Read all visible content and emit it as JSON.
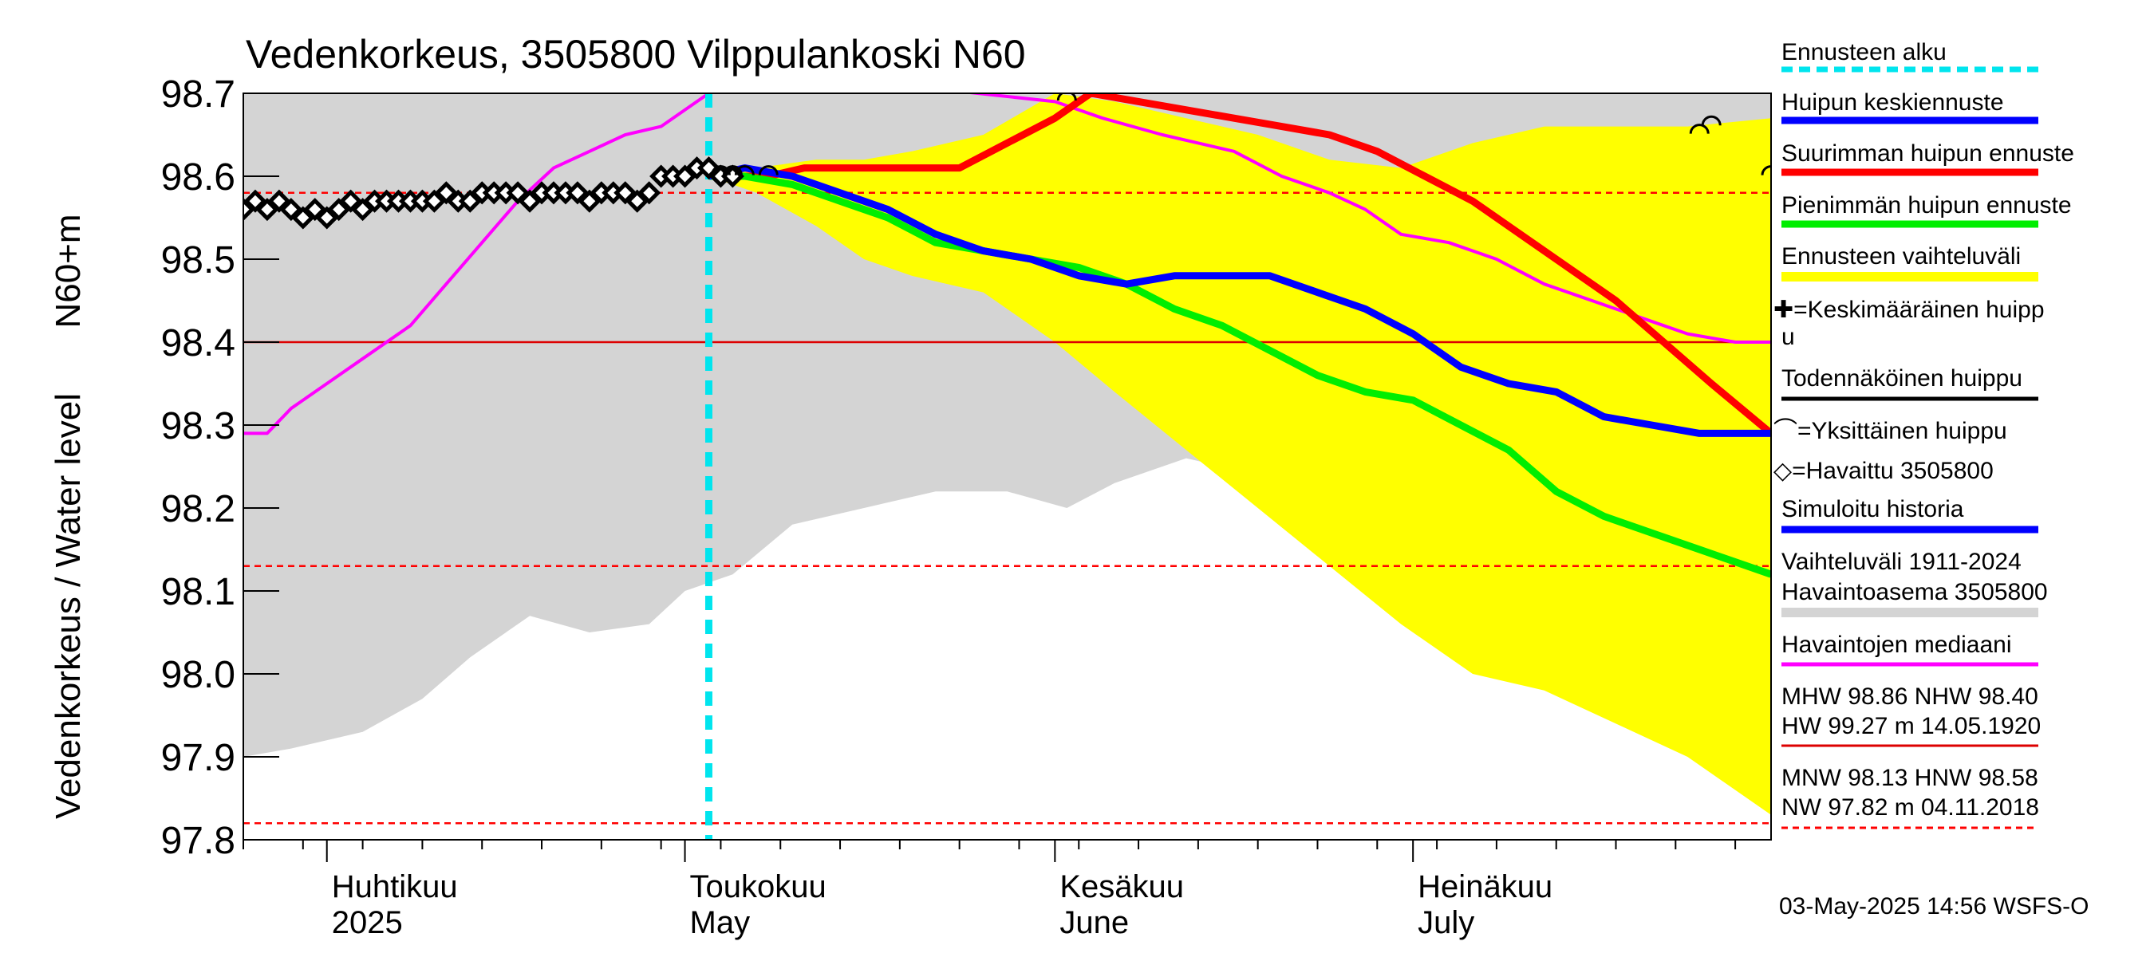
{
  "chart_data": {
    "type": "line",
    "title": "Vedenkorkeus, 3505800 Vilppulankoski N60",
    "ylabel_top": "N60+m",
    "ylabel": "Vedenkorkeus / Water level",
    "ylim": [
      97.8,
      98.7
    ],
    "y_ticks": [
      "97.8",
      "97.9",
      "98.0",
      "98.1",
      "98.2",
      "98.3",
      "98.4",
      "98.5",
      "98.6",
      "98.7"
    ],
    "x_range": [
      "2025-03-25",
      "2025-07-31"
    ],
    "month_labels": [
      {
        "fi": "Huhtikuu",
        "en": "2025",
        "date": "2025-04-01"
      },
      {
        "fi": "Toukokuu",
        "en": "May",
        "date": "2025-05-01"
      },
      {
        "fi": "Kesäkuu",
        "en": "June",
        "date": "2025-06-01"
      },
      {
        "fi": "Heinäkuu",
        "en": "July",
        "date": "2025-07-01"
      }
    ],
    "forecast_start": "2025-05-03",
    "reference_lines": [
      {
        "name": "MHW",
        "value": 98.86,
        "color": "#ff0000",
        "style": "dashed"
      },
      {
        "name": "NHW",
        "value": 98.4,
        "color": "#dd0000",
        "style": "solid"
      },
      {
        "name": "HNW",
        "value": 98.58,
        "color": "#ff0000",
        "style": "dashed"
      },
      {
        "name": "MNW",
        "value": 98.13,
        "color": "#ff0000",
        "style": "dashed"
      },
      {
        "name": "NW",
        "value": 97.82,
        "color": "#ff0000",
        "style": "dashed"
      }
    ],
    "historical_range": {
      "name": "Vaihteluväli 1911-2024 Havaintoasema 3505800",
      "color": "#d4d4d4",
      "x": [
        "2025-03-25",
        "2025-03-29",
        "2025-04-04",
        "2025-04-09",
        "2025-04-13",
        "2025-04-18",
        "2025-04-23",
        "2025-04-28",
        "2025-05-01",
        "2025-05-05",
        "2025-05-10",
        "2025-05-16",
        "2025-05-22",
        "2025-05-28",
        "2025-06-02",
        "2025-06-06",
        "2025-06-12",
        "2025-06-18",
        "2025-06-22",
        "2025-06-26",
        "2025-06-29",
        "2025-07-03",
        "2025-07-08",
        "2025-07-14",
        "2025-07-20",
        "2025-07-26",
        "2025-07-31"
      ],
      "upper": [
        98.7,
        98.7,
        98.7,
        98.7,
        98.7,
        98.7,
        98.7,
        98.7,
        98.7,
        98.7,
        98.7,
        98.7,
        98.7,
        98.7,
        98.7,
        98.7,
        98.7,
        98.7,
        98.7,
        98.7,
        98.7,
        98.7,
        98.7,
        98.7,
        98.7,
        98.7,
        98.7
      ],
      "lower": [
        97.9,
        97.91,
        97.93,
        97.97,
        98.02,
        98.07,
        98.05,
        98.06,
        98.1,
        98.12,
        98.18,
        98.2,
        98.22,
        98.22,
        98.2,
        98.23,
        98.26,
        98.24,
        98.2,
        98.12,
        98.14,
        98.19,
        98.18,
        98.15,
        98.14,
        98.12,
        98.1
      ]
    },
    "forecast_range": {
      "name": "Ennusteen vaihteluväli",
      "color": "#ffff00",
      "x": [
        "2025-05-03",
        "2025-05-07",
        "2025-05-12",
        "2025-05-16",
        "2025-05-20",
        "2025-05-26",
        "2025-06-01",
        "2025-06-06",
        "2025-06-12",
        "2025-06-18",
        "2025-06-24",
        "2025-06-30",
        "2025-07-06",
        "2025-07-12",
        "2025-07-18",
        "2025-07-24",
        "2025-07-31"
      ],
      "upper": [
        98.6,
        98.61,
        98.62,
        98.62,
        98.63,
        98.65,
        98.7,
        98.69,
        98.67,
        98.65,
        98.62,
        98.61,
        98.64,
        98.66,
        98.66,
        98.66,
        98.67
      ],
      "lower": [
        98.6,
        98.58,
        98.54,
        98.5,
        98.48,
        98.46,
        98.4,
        98.34,
        98.27,
        98.2,
        98.13,
        98.06,
        98.0,
        97.98,
        97.94,
        97.9,
        97.83
      ]
    },
    "series": [
      {
        "name": "Havaittu 3505800",
        "color": "#000000",
        "marker": "diamond",
        "x": [
          "2025-03-25",
          "2025-03-26",
          "2025-03-27",
          "2025-03-28",
          "2025-03-29",
          "2025-03-30",
          "2025-03-31",
          "2025-04-01",
          "2025-04-02",
          "2025-04-03",
          "2025-04-04",
          "2025-04-05",
          "2025-04-06",
          "2025-04-07",
          "2025-04-08",
          "2025-04-09",
          "2025-04-10",
          "2025-04-11",
          "2025-04-12",
          "2025-04-13",
          "2025-04-14",
          "2025-04-15",
          "2025-04-16",
          "2025-04-17",
          "2025-04-18",
          "2025-04-19",
          "2025-04-20",
          "2025-04-21",
          "2025-04-22",
          "2025-04-23",
          "2025-04-24",
          "2025-04-25",
          "2025-04-26",
          "2025-04-27",
          "2025-04-28",
          "2025-04-29",
          "2025-04-30",
          "2025-05-01",
          "2025-05-02",
          "2025-05-03",
          "2025-05-04",
          "2025-05-05"
        ],
        "y": [
          98.56,
          98.57,
          98.56,
          98.57,
          98.56,
          98.55,
          98.56,
          98.55,
          98.56,
          98.57,
          98.56,
          98.57,
          98.57,
          98.57,
          98.57,
          98.57,
          98.57,
          98.58,
          98.57,
          98.57,
          98.58,
          98.58,
          98.58,
          98.58,
          98.57,
          98.58,
          98.58,
          98.58,
          98.58,
          98.57,
          98.58,
          98.58,
          98.58,
          98.57,
          98.58,
          98.6,
          98.6,
          98.6,
          98.61,
          98.61,
          98.6,
          98.6
        ]
      },
      {
        "name": "Havaintojen mediaani",
        "color": "#ff00ff",
        "x": [
          "2025-03-25",
          "2025-03-27",
          "2025-03-29",
          "2025-04-01",
          "2025-04-04",
          "2025-04-08",
          "2025-04-11",
          "2025-04-14",
          "2025-04-17",
          "2025-04-20",
          "2025-04-23",
          "2025-04-26",
          "2025-04-29",
          "2025-05-02",
          "2025-05-04",
          "2025-05-06",
          "2025-06-01",
          "2025-06-05",
          "2025-06-10",
          "2025-06-16",
          "2025-06-20",
          "2025-06-24",
          "2025-06-27",
          "2025-06-30",
          "2025-07-04",
          "2025-07-08",
          "2025-07-12",
          "2025-07-16",
          "2025-07-20",
          "2025-07-24",
          "2025-07-28",
          "2025-07-31"
        ],
        "y": [
          98.29,
          98.29,
          98.32,
          98.35,
          98.38,
          98.42,
          98.47,
          98.52,
          98.57,
          98.61,
          98.63,
          98.65,
          98.66,
          98.69,
          98.71,
          98.73,
          98.69,
          98.67,
          98.65,
          98.63,
          98.6,
          98.58,
          98.56,
          98.53,
          98.52,
          98.5,
          98.47,
          98.45,
          98.43,
          98.41,
          98.4,
          98.4
        ]
      },
      {
        "name": "Suurimman huipun ennuste",
        "color": "#ff0000",
        "x": [
          "2025-05-03",
          "2025-05-06",
          "2025-05-08",
          "2025-05-11",
          "2025-05-14",
          "2025-05-17",
          "2025-05-20",
          "2025-05-24",
          "2025-05-28",
          "2025-06-01",
          "2025-06-04",
          "2025-06-08",
          "2025-06-12",
          "2025-06-16",
          "2025-06-20",
          "2025-06-24",
          "2025-06-28",
          "2025-07-02",
          "2025-07-06",
          "2025-07-10",
          "2025-07-14",
          "2025-07-18",
          "2025-07-22",
          "2025-07-26",
          "2025-07-31"
        ],
        "y": [
          98.6,
          98.6,
          98.6,
          98.61,
          98.61,
          98.61,
          98.61,
          98.61,
          98.64,
          98.67,
          98.7,
          98.69,
          98.68,
          98.67,
          98.66,
          98.65,
          98.63,
          98.6,
          98.57,
          98.53,
          98.49,
          98.45,
          98.4,
          98.35,
          98.29
        ]
      },
      {
        "name": "Pienimmän huipun ennuste",
        "color": "#00ee00",
        "x": [
          "2025-05-03",
          "2025-05-06",
          "2025-05-10",
          "2025-05-14",
          "2025-05-18",
          "2025-05-22",
          "2025-05-26",
          "2025-05-30",
          "2025-06-03",
          "2025-06-07",
          "2025-06-11",
          "2025-06-15",
          "2025-06-19",
          "2025-06-23",
          "2025-06-27",
          "2025-07-01",
          "2025-07-05",
          "2025-07-09",
          "2025-07-13",
          "2025-07-17",
          "2025-07-21",
          "2025-07-25",
          "2025-07-31"
        ],
        "y": [
          98.6,
          98.6,
          98.59,
          98.57,
          98.55,
          98.52,
          98.51,
          98.5,
          98.49,
          98.47,
          98.44,
          98.42,
          98.39,
          98.36,
          98.34,
          98.33,
          98.3,
          98.27,
          98.22,
          98.19,
          98.17,
          98.15,
          98.12
        ]
      },
      {
        "name": "Huipun keskiennuste",
        "color": "#0000ff",
        "x": [
          "2025-05-03",
          "2025-05-06",
          "2025-05-10",
          "2025-05-14",
          "2025-05-18",
          "2025-05-22",
          "2025-05-26",
          "2025-05-30",
          "2025-06-03",
          "2025-06-07",
          "2025-06-11",
          "2025-06-15",
          "2025-06-19",
          "2025-06-23",
          "2025-06-27",
          "2025-07-01",
          "2025-07-05",
          "2025-07-09",
          "2025-07-13",
          "2025-07-17",
          "2025-07-21",
          "2025-07-25",
          "2025-07-31"
        ],
        "y": [
          98.6,
          98.61,
          98.6,
          98.58,
          98.56,
          98.53,
          98.51,
          98.5,
          98.48,
          98.47,
          98.48,
          98.48,
          98.48,
          98.46,
          98.44,
          98.41,
          98.37,
          98.35,
          98.34,
          98.31,
          98.3,
          98.29,
          98.29
        ]
      }
    ],
    "single_peaks": [
      {
        "x": "2025-05-04",
        "y": 98.61
      },
      {
        "x": "2025-05-05",
        "y": 98.61
      },
      {
        "x": "2025-05-06",
        "y": 98.61
      },
      {
        "x": "2025-05-08",
        "y": 98.61
      },
      {
        "x": "2025-06-02",
        "y": 98.7
      },
      {
        "x": "2025-07-25",
        "y": 98.66
      },
      {
        "x": "2025-07-26",
        "y": 98.67
      },
      {
        "x": "2025-07-31",
        "y": 98.61
      }
    ],
    "legend": {
      "placement": "right",
      "entries": [
        {
          "label": "Ennusteen alku",
          "color": "#00e5ee",
          "kind": "dashed-line"
        },
        {
          "label": "Huipun keskiennuste",
          "color": "#0000ff",
          "kind": "line"
        },
        {
          "label": "Suurimman huipun ennuste",
          "color": "#ff0000",
          "kind": "line"
        },
        {
          "label": "Pienimmän huipun ennuste",
          "color": "#00ee00",
          "kind": "line"
        },
        {
          "label": "Ennusteen vaihteluväli",
          "color": "#ffff00",
          "kind": "band"
        },
        {
          "label_line1": "✚=Keskimääräinen huipp",
          "label_line2": "u",
          "color": "#000000",
          "kind": "symbol"
        },
        {
          "label": "Todennäköinen huippu",
          "color": "#000000",
          "kind": "line"
        },
        {
          "label": "⌒=Yksittäinen huippu",
          "color": "#000000",
          "kind": "symbol"
        },
        {
          "label": "◇=Havaittu 3505800",
          "color": "#000000",
          "kind": "symbol"
        },
        {
          "label": "Simuloitu historia",
          "color": "#0000ff",
          "kind": "line"
        },
        {
          "label_line1": "Vaihteluväli 1911-2024",
          "label_line2": " Havaintoasema 3505800",
          "color": "#d4d4d4",
          "kind": "band"
        },
        {
          "label": "Havaintojen mediaani",
          "color": "#ff00ff",
          "kind": "line"
        }
      ]
    },
    "stats": {
      "high_line1": "MHW  98.86 NHW  98.40",
      "high_line2": "HW  99.27 m 14.05.1920",
      "low_line1": "MNW  98.13 HNW  98.58",
      "low_line2": "NW  97.82 m 04.11.2018"
    },
    "footer": "03-May-2025 14:56 WSFS-O"
  }
}
